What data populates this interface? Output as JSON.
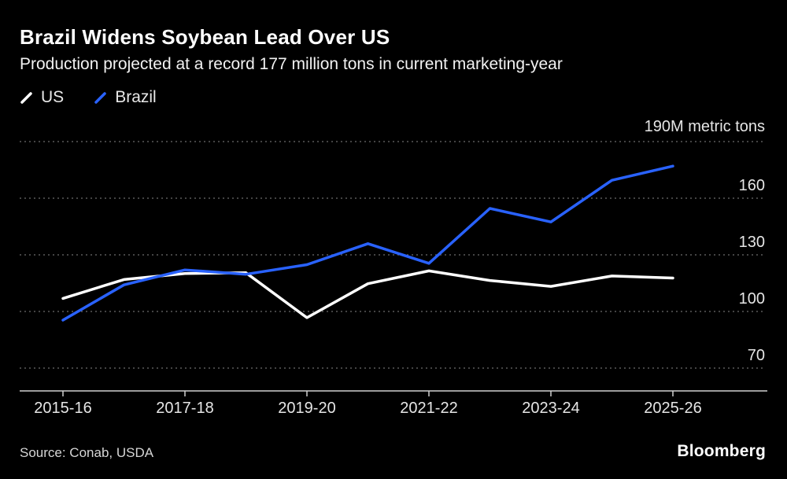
{
  "header": {
    "title": "Brazil Widens Soybean Lead Over US",
    "subtitle": "Production projected at a record 177 million tons in current marketing-year"
  },
  "legend": [
    {
      "label": "US",
      "color": "#ffffff"
    },
    {
      "label": "Brazil",
      "color": "#2962ff"
    }
  ],
  "chart_data": {
    "type": "line",
    "title": "Brazil Widens Soybean Lead Over US",
    "subtitle": "Production projected at a record 177 million tons in current marketing-year",
    "x": [
      "2015-16",
      "2016-17",
      "2017-18",
      "2018-19",
      "2019-20",
      "2020-21",
      "2021-22",
      "2022-23",
      "2023-24",
      "2024-25",
      "2025-26"
    ],
    "series": [
      {
        "name": "US",
        "color": "#ffffff",
        "values": [
          106.9,
          116.9,
          120.1,
          120.5,
          96.7,
          114.7,
          121.5,
          116.4,
          113.3,
          118.8,
          117.7
        ]
      },
      {
        "name": "Brazil",
        "color": "#2962ff",
        "values": [
          95.4,
          114.1,
          122.0,
          119.7,
          124.8,
          135.9,
          125.5,
          154.6,
          147.4,
          169.5,
          177.0
        ]
      }
    ],
    "ylabel_top": "190M metric tons",
    "unit": "M metric tons",
    "y_ticks": [
      190,
      160,
      130,
      100,
      70
    ],
    "x_tick_labels": [
      "2015-16",
      "2017-18",
      "2019-20",
      "2021-22",
      "2023-24",
      "2025-26"
    ],
    "ylim": [
      70,
      190
    ],
    "grid": "horizontal-dotted",
    "legend_position": "top-left",
    "grid_color": "#5a5a5a",
    "axis_color": "#d0d0d0"
  },
  "footer": {
    "source": "Source: Conab, USDA",
    "brand": "Bloomberg"
  }
}
